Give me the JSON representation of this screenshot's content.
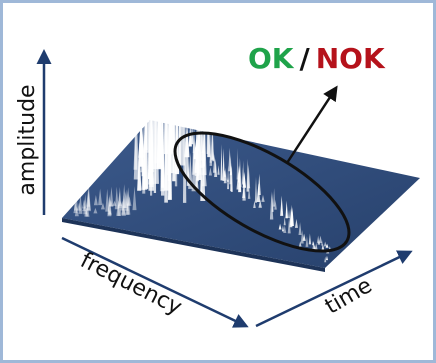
{
  "title": {
    "ok": "OK",
    "separator": "/",
    "nok": "NOK"
  },
  "axes": {
    "amplitude": "amplitude",
    "frequency": "frequency",
    "time": "time"
  }
}
